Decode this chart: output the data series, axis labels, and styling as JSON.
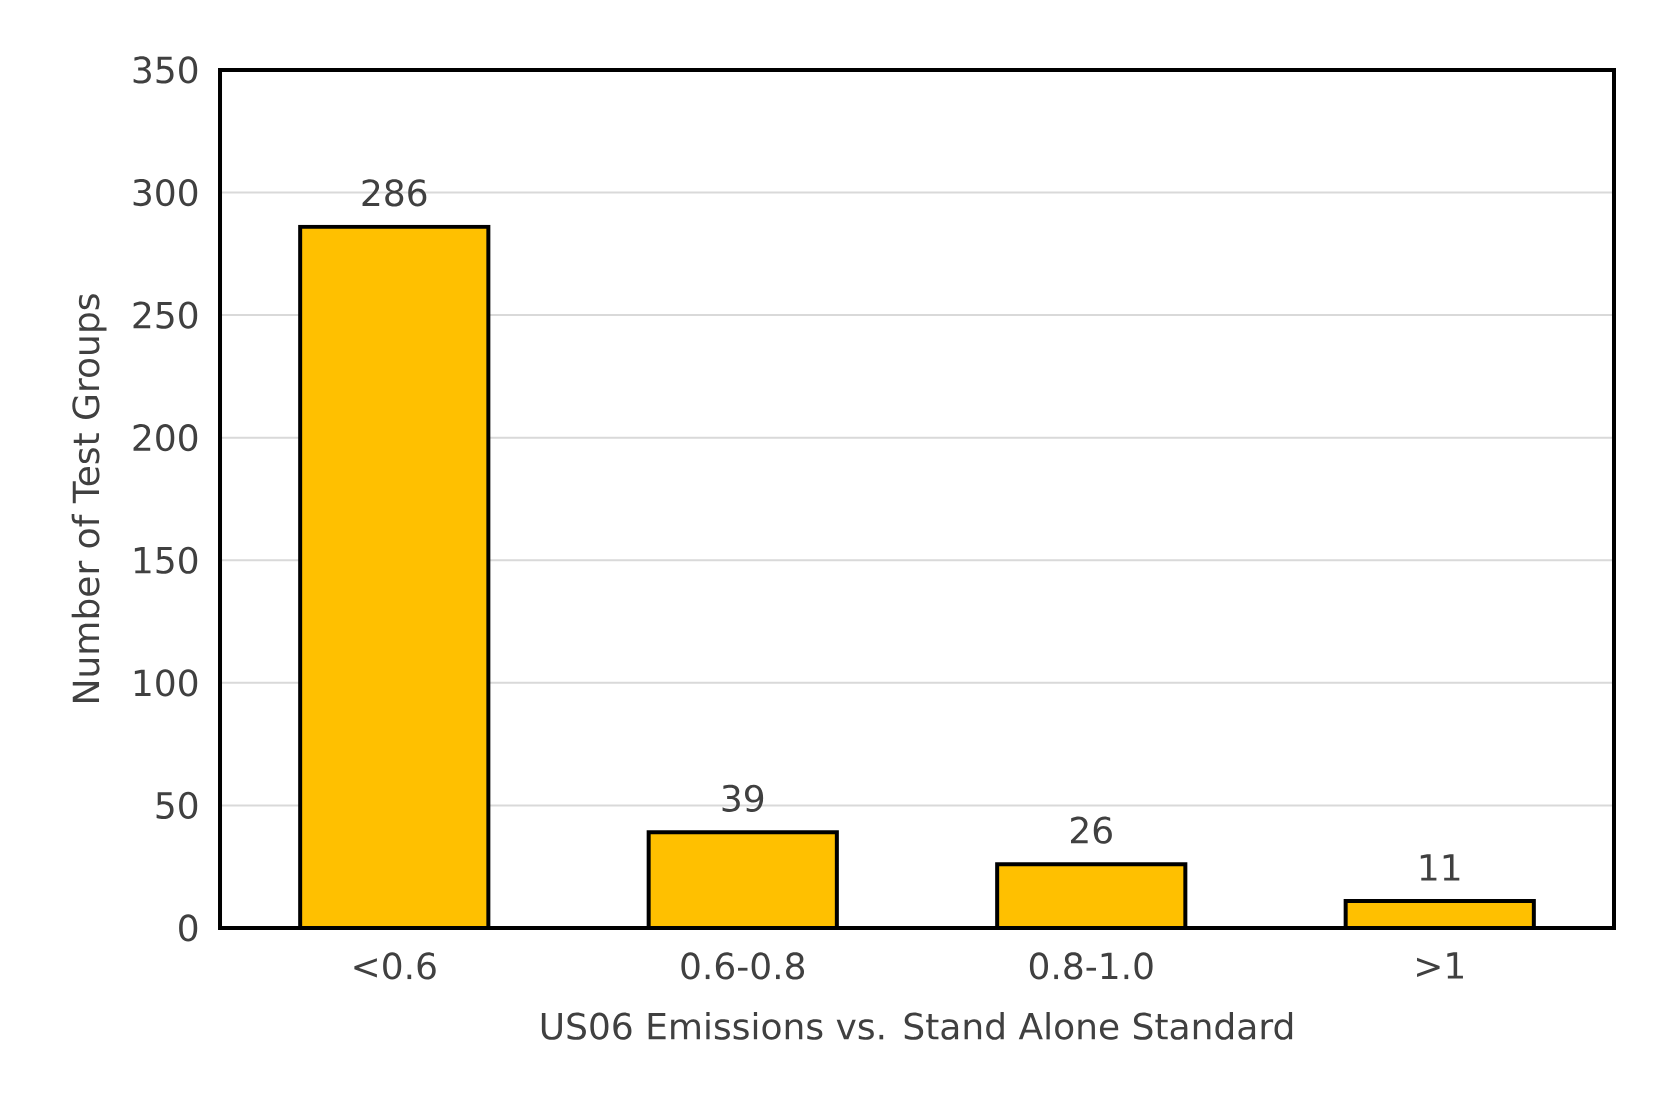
{
  "chart_data": {
    "type": "bar",
    "xlabel": "US06 Emissions vs. Stand Alone Standard",
    "ylabel": "Number of Test Groups",
    "categories": [
      "<0.6",
      "0.6-0.8",
      "0.8-1.0",
      ">1"
    ],
    "values": [
      286,
      39,
      26,
      11
    ],
    "color": "#ffc000",
    "ylim": [
      0,
      350
    ],
    "yticks": [
      0,
      50,
      100,
      150,
      200,
      250,
      300,
      350
    ],
    "grid": "y",
    "data_labels": true
  }
}
